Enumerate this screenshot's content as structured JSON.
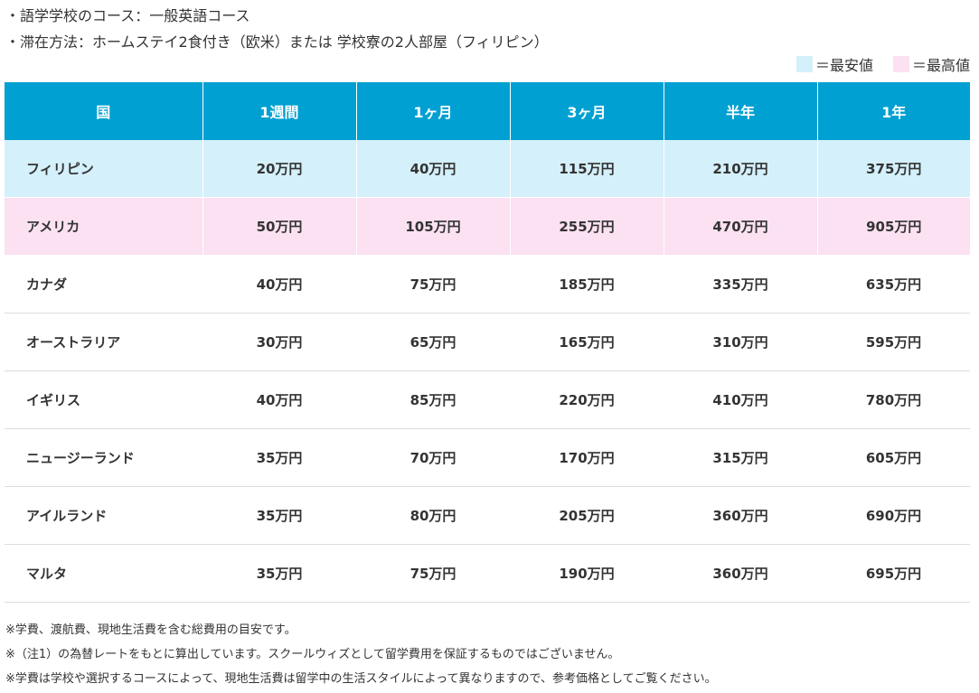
{
  "notes_top": [
    "・語学学校のコース：一般英語コース",
    "・滞在方法：ホームステイ2食付き（欧米）または 学校寮の2人部屋（フィリピン）"
  ],
  "legend": {
    "lowest_label": "＝最安値",
    "highest_label": "＝最高値",
    "lowest_color": "#d4f0fb",
    "highest_color": "#fbe1f2"
  },
  "colors": {
    "header_bg": "#00a0d2",
    "header_text": "#ffffff"
  },
  "table": {
    "headers": [
      "国",
      "1週間",
      "1ヶ月",
      "3ヶ月",
      "半年",
      "1年"
    ],
    "rows": [
      {
        "country": "フィリピン",
        "values": [
          "20万円",
          "40万円",
          "115万円",
          "210万円",
          "375万円"
        ],
        "highlight": "lowest"
      },
      {
        "country": "アメリカ",
        "values": [
          "50万円",
          "105万円",
          "255万円",
          "470万円",
          "905万円"
        ],
        "highlight": "highest"
      },
      {
        "country": "カナダ",
        "values": [
          "40万円",
          "75万円",
          "185万円",
          "335万円",
          "635万円"
        ],
        "highlight": ""
      },
      {
        "country": "オーストラリア",
        "values": [
          "30万円",
          "65万円",
          "165万円",
          "310万円",
          "595万円"
        ],
        "highlight": ""
      },
      {
        "country": "イギリス",
        "values": [
          "40万円",
          "85万円",
          "220万円",
          "410万円",
          "780万円"
        ],
        "highlight": ""
      },
      {
        "country": "ニュージーランド",
        "values": [
          "35万円",
          "70万円",
          "170万円",
          "315万円",
          "605万円"
        ],
        "highlight": ""
      },
      {
        "country": "アイルランド",
        "values": [
          "35万円",
          "80万円",
          "205万円",
          "360万円",
          "690万円"
        ],
        "highlight": ""
      },
      {
        "country": "マルタ",
        "values": [
          "35万円",
          "75万円",
          "190万円",
          "360万円",
          "695万円"
        ],
        "highlight": ""
      }
    ]
  },
  "notes_bottom": [
    "※学費、渡航費、現地生活費を含む総費用の目安です。",
    "※（注1）の為替レートをもとに算出しています。スクールウィズとして留学費用を保証するものではございません。",
    "※学費は学校や選択するコースによって、現地生活費は留学中の生活スタイルによって異なりますので、参考価格としてご覧ください。"
  ]
}
